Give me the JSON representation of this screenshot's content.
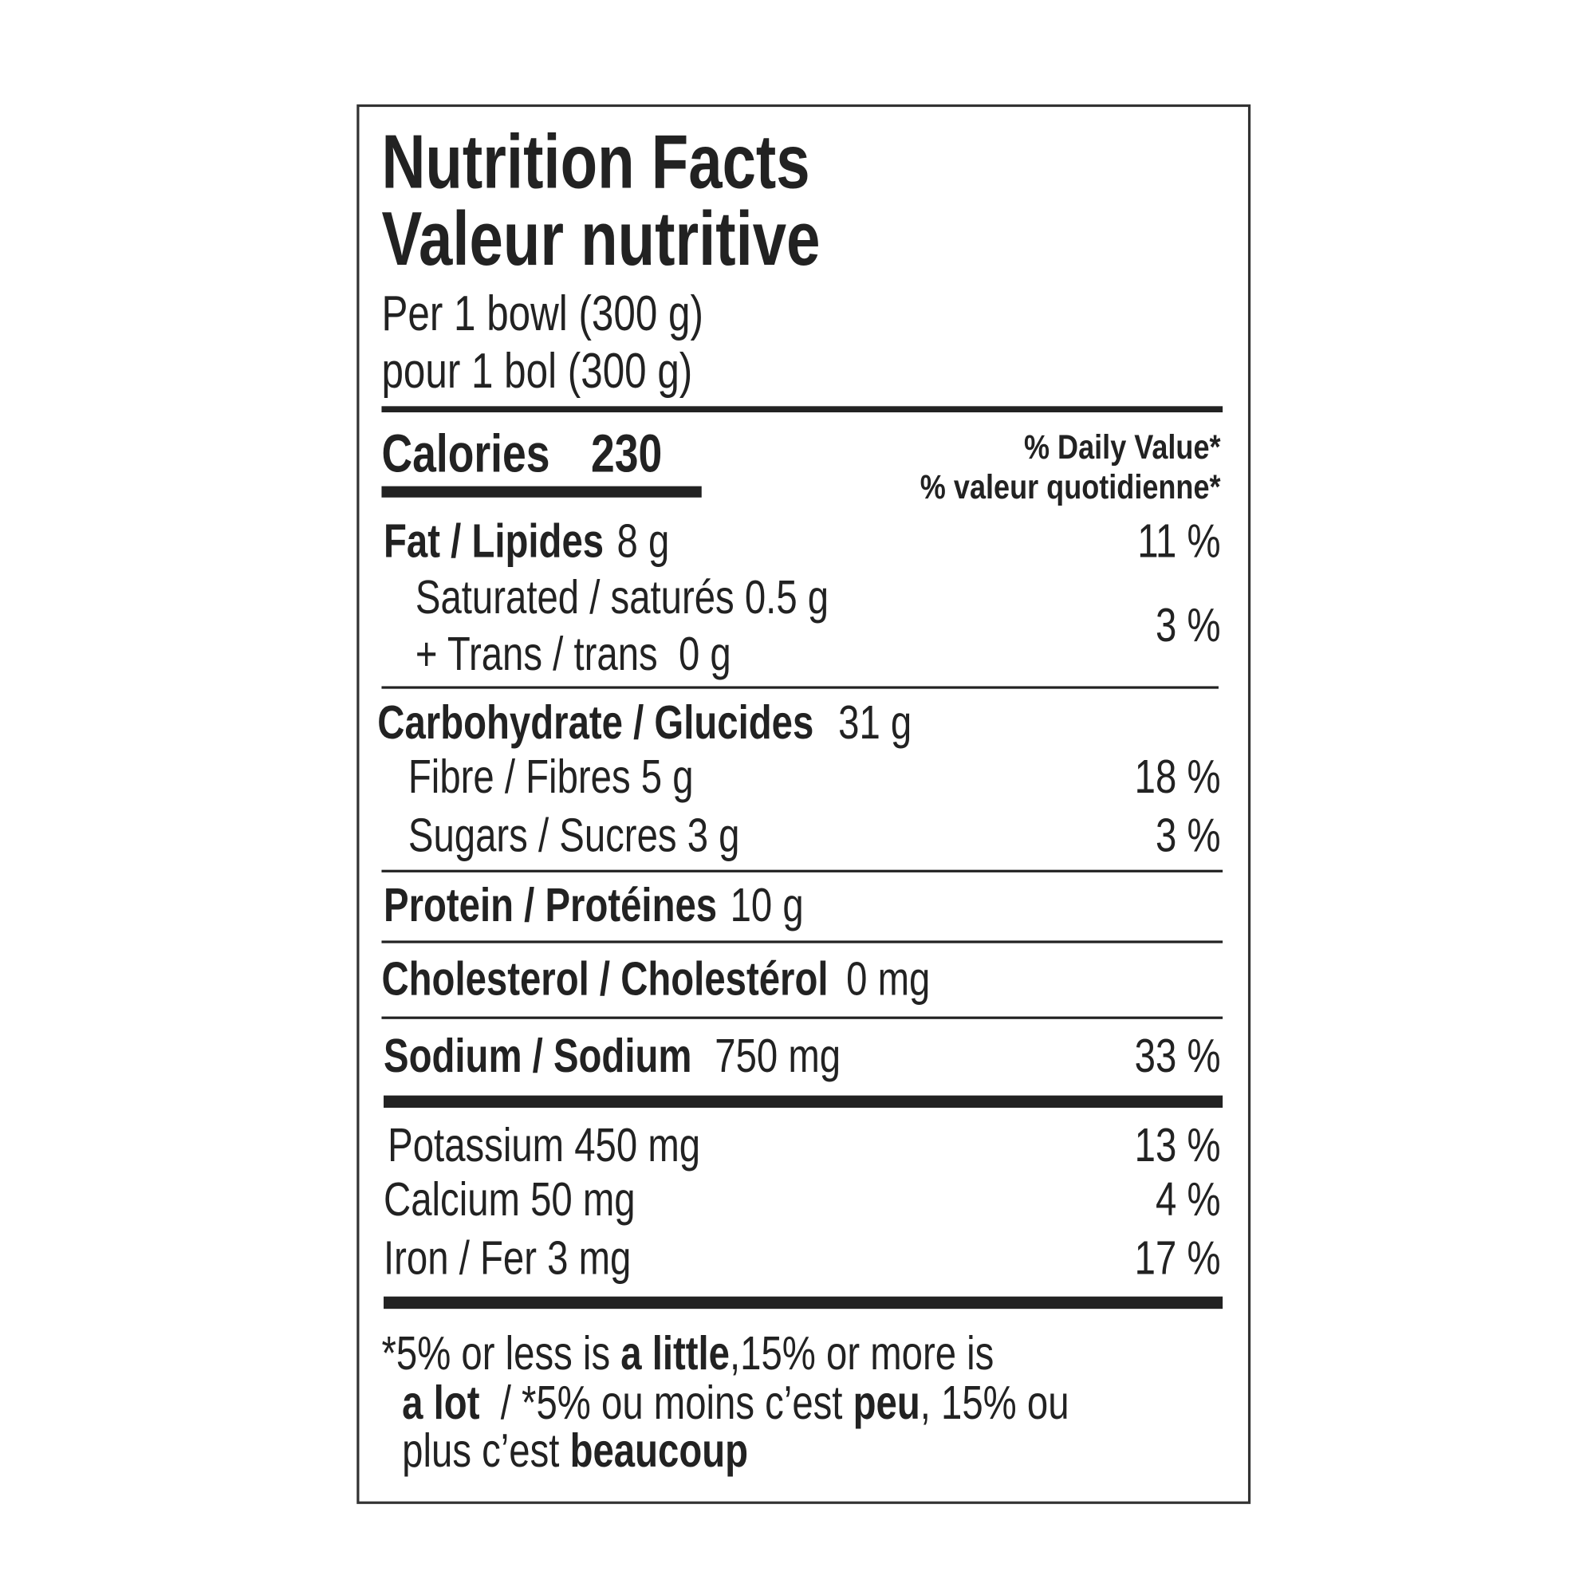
{
  "label": {
    "title_en": "Nutrition Facts",
    "title_fr": "Valeur nutritive",
    "serving_en": "Per 1 bowl (300 g)",
    "serving_fr": "pour 1 bol (300 g)",
    "calories_label": "Calories",
    "calories_value": "230",
    "daily_value_en": "% Daily Value*",
    "daily_value_fr": "% valeur quotidienne*",
    "fat": {
      "name": "Fat / Lipides",
      "amount": "8 g",
      "dv": "11 %"
    },
    "saturated": "Saturated / saturés 0.5 g",
    "trans": "+ Trans / trans  0 g",
    "saturated_trans_dv": "3 %",
    "carbohydrate": {
      "name": "Carbohydrate / Glucides",
      "amount": "31 g"
    },
    "fibre": {
      "text": "Fibre / Fibres 5 g",
      "dv": "18 %"
    },
    "sugars": {
      "text": "Sugars / Sucres 3 g",
      "dv": "3 %"
    },
    "protein": {
      "name": "Protein / Protéines",
      "amount": "10 g"
    },
    "cholesterol": {
      "name": "Cholesterol / Cholestérol",
      "amount": "0 mg"
    },
    "sodium": {
      "name": "Sodium / Sodium",
      "amount": "750 mg",
      "dv": "33 %"
    },
    "potassium": {
      "text": "Potassium 450 mg",
      "dv": "13 %"
    },
    "calcium": {
      "text": "Calcium 50 mg",
      "dv": "4 %"
    },
    "iron": {
      "text": "Iron / Fer 3 mg",
      "dv": "17 %"
    },
    "footnote": [
      [
        "*5% or less is ",
        "a little",
        ",15% or more is"
      ],
      [
        "a lot",
        "  / *5% ou moins c’est ",
        "peu",
        ", 15% ou"
      ],
      [
        "plus c’est ",
        "beaucoup"
      ]
    ]
  }
}
